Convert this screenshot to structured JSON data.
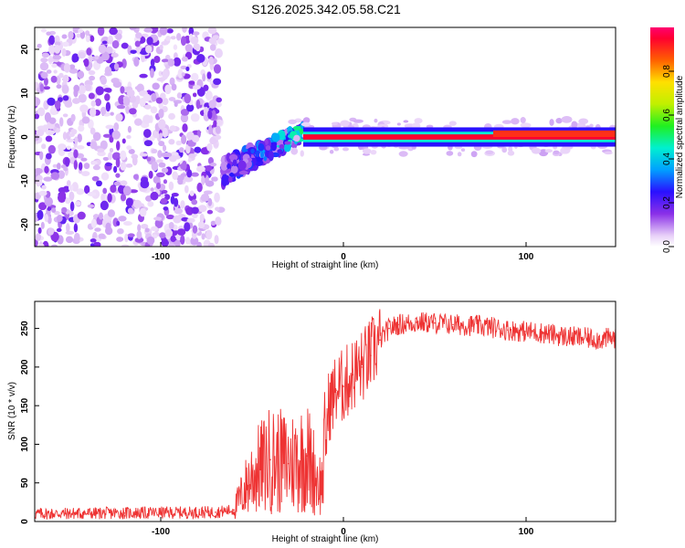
{
  "page_title": "S126.2025.342.05.58.C21",
  "chart_data": [
    {
      "type": "heatmap",
      "title": "S126.2025.342.05.58.C21",
      "xlabel": "Height of straight line (km)",
      "ylabel": "Frequency (Hz)",
      "xlim": [
        -169,
        149
      ],
      "ylim": [
        -25,
        25
      ],
      "x_ticks": [
        -100,
        0,
        100
      ],
      "y_ticks": [
        -20,
        -10,
        0,
        10,
        20
      ],
      "colorbar": {
        "label": "Normalized spectral amplitude",
        "range": [
          0,
          1
        ],
        "ticks": [
          "0.0",
          "0.2",
          "0.4",
          "0.6",
          "0.8"
        ]
      },
      "regions": [
        {
          "name": "noise",
          "x": [
            -169,
            -67
          ],
          "freq": [
            -25,
            25
          ],
          "amplitude": 0.15
        },
        {
          "name": "oscillating onset",
          "x": [
            -66,
            -22
          ],
          "freq": [
            -10,
            6
          ],
          "amplitude": 0.35
        },
        {
          "name": "steady tone",
          "x": [
            -22,
            149
          ],
          "freq": [
            -1,
            1
          ],
          "amplitude": 0.95
        },
        {
          "name": "step",
          "x": [
            82,
            149
          ],
          "freq": [
            0,
            1.5
          ],
          "amplitude": 0.9
        }
      ]
    },
    {
      "type": "line",
      "xlabel": "Height of straight line (km)",
      "ylabel": "SNR (10 * v/v)",
      "xlim": [
        -169,
        149
      ],
      "ylim": [
        0,
        285
      ],
      "x_ticks": [
        -100,
        0,
        100
      ],
      "y_ticks": [
        0,
        50,
        100,
        150,
        200,
        250
      ],
      "series": [
        {
          "name": "SNR",
          "color": "#ee3333",
          "x": [
            -169,
            -120,
            -70,
            -60,
            -50,
            -40,
            -30,
            -20,
            -12,
            -8,
            -4,
            0,
            5,
            10,
            15,
            20,
            25,
            30,
            40,
            50,
            60,
            70,
            80,
            90,
            100,
            110,
            120,
            130,
            140,
            149
          ],
          "y": [
            10,
            11,
            12,
            15,
            60,
            80,
            75,
            85,
            45,
            150,
            170,
            175,
            190,
            200,
            215,
            235,
            250,
            255,
            258,
            257,
            255,
            254,
            252,
            248,
            246,
            244,
            240,
            238,
            236,
            238
          ]
        }
      ]
    }
  ]
}
